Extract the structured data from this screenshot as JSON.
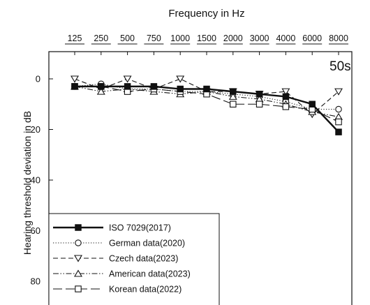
{
  "chart_data": {
    "type": "line",
    "title": "Frequency in Hz",
    "xlabel": "Frequency in Hz",
    "ylabel": "Hearing threshold deviation in dB",
    "panel_label": "50s",
    "categories": [
      "125",
      "250",
      "500",
      "750",
      "1000",
      "1500",
      "2000",
      "3000",
      "4000",
      "6000",
      "8000"
    ],
    "y_inverted": true,
    "ylim": [
      -7,
      90
    ],
    "yticks": [
      0,
      20,
      40,
      60,
      80
    ],
    "x_axis_position": "top",
    "grid": false,
    "legend_position": "bottom-left",
    "series": [
      {
        "name": "ISO 7029(2017)",
        "marker": "filled-square",
        "line_style": "solid",
        "values": [
          3,
          3,
          3,
          3,
          4,
          4,
          5,
          6,
          7,
          10,
          21
        ]
      },
      {
        "name": "German data(2020)",
        "marker": "open-circle",
        "line_style": "dotted",
        "values": [
          3,
          2,
          4,
          4,
          5,
          5,
          6,
          7,
          9,
          12,
          12
        ]
      },
      {
        "name": "Czech data(2023)",
        "marker": "open-triangle-down",
        "line_style": "dashed",
        "values": [
          0,
          4,
          0,
          4,
          0,
          5,
          5,
          6,
          5,
          14,
          5
        ]
      },
      {
        "name": "American data(2023)",
        "marker": "open-triangle-up",
        "line_style": "dash-dot-dot",
        "values": [
          3,
          5,
          4,
          5,
          6,
          5,
          7,
          8,
          10,
          13,
          15
        ]
      },
      {
        "name": "Korean data(2022)",
        "marker": "open-square",
        "line_style": "long-dash",
        "values": [
          3,
          3,
          5,
          4,
          5,
          6,
          10,
          10,
          11,
          12,
          17
        ]
      }
    ]
  }
}
